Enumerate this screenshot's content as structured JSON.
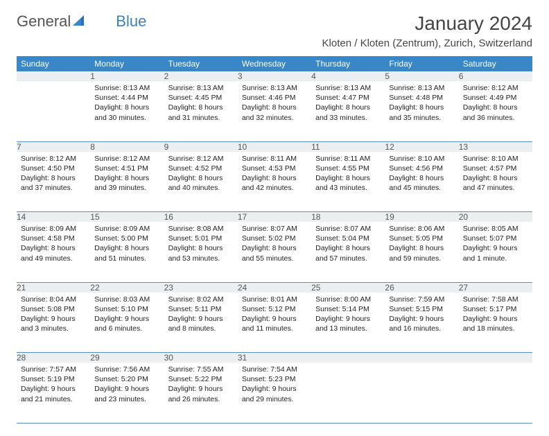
{
  "brand": {
    "part1": "General",
    "part2": "Blue"
  },
  "title": "January 2024",
  "location": "Kloten / Kloten (Zentrum), Zurich, Switzerland",
  "colors": {
    "header_bg": "#3a87c7",
    "header_text": "#ffffff",
    "daynum_bg": "#eceff1",
    "border": "#5a8fbf",
    "brand_gray": "#555555",
    "brand_blue": "#3a7fc4",
    "body_text": "#222222"
  },
  "weekdays": [
    "Sunday",
    "Monday",
    "Tuesday",
    "Wednesday",
    "Thursday",
    "Friday",
    "Saturday"
  ],
  "weeks": [
    [
      null,
      {
        "n": "1",
        "sr": "Sunrise: 8:13 AM",
        "ss": "Sunset: 4:44 PM",
        "d1": "Daylight: 8 hours",
        "d2": "and 30 minutes."
      },
      {
        "n": "2",
        "sr": "Sunrise: 8:13 AM",
        "ss": "Sunset: 4:45 PM",
        "d1": "Daylight: 8 hours",
        "d2": "and 31 minutes."
      },
      {
        "n": "3",
        "sr": "Sunrise: 8:13 AM",
        "ss": "Sunset: 4:46 PM",
        "d1": "Daylight: 8 hours",
        "d2": "and 32 minutes."
      },
      {
        "n": "4",
        "sr": "Sunrise: 8:13 AM",
        "ss": "Sunset: 4:47 PM",
        "d1": "Daylight: 8 hours",
        "d2": "and 33 minutes."
      },
      {
        "n": "5",
        "sr": "Sunrise: 8:13 AM",
        "ss": "Sunset: 4:48 PM",
        "d1": "Daylight: 8 hours",
        "d2": "and 35 minutes."
      },
      {
        "n": "6",
        "sr": "Sunrise: 8:12 AM",
        "ss": "Sunset: 4:49 PM",
        "d1": "Daylight: 8 hours",
        "d2": "and 36 minutes."
      }
    ],
    [
      {
        "n": "7",
        "sr": "Sunrise: 8:12 AM",
        "ss": "Sunset: 4:50 PM",
        "d1": "Daylight: 8 hours",
        "d2": "and 37 minutes."
      },
      {
        "n": "8",
        "sr": "Sunrise: 8:12 AM",
        "ss": "Sunset: 4:51 PM",
        "d1": "Daylight: 8 hours",
        "d2": "and 39 minutes."
      },
      {
        "n": "9",
        "sr": "Sunrise: 8:12 AM",
        "ss": "Sunset: 4:52 PM",
        "d1": "Daylight: 8 hours",
        "d2": "and 40 minutes."
      },
      {
        "n": "10",
        "sr": "Sunrise: 8:11 AM",
        "ss": "Sunset: 4:53 PM",
        "d1": "Daylight: 8 hours",
        "d2": "and 42 minutes."
      },
      {
        "n": "11",
        "sr": "Sunrise: 8:11 AM",
        "ss": "Sunset: 4:55 PM",
        "d1": "Daylight: 8 hours",
        "d2": "and 43 minutes."
      },
      {
        "n": "12",
        "sr": "Sunrise: 8:10 AM",
        "ss": "Sunset: 4:56 PM",
        "d1": "Daylight: 8 hours",
        "d2": "and 45 minutes."
      },
      {
        "n": "13",
        "sr": "Sunrise: 8:10 AM",
        "ss": "Sunset: 4:57 PM",
        "d1": "Daylight: 8 hours",
        "d2": "and 47 minutes."
      }
    ],
    [
      {
        "n": "14",
        "sr": "Sunrise: 8:09 AM",
        "ss": "Sunset: 4:58 PM",
        "d1": "Daylight: 8 hours",
        "d2": "and 49 minutes."
      },
      {
        "n": "15",
        "sr": "Sunrise: 8:09 AM",
        "ss": "Sunset: 5:00 PM",
        "d1": "Daylight: 8 hours",
        "d2": "and 51 minutes."
      },
      {
        "n": "16",
        "sr": "Sunrise: 8:08 AM",
        "ss": "Sunset: 5:01 PM",
        "d1": "Daylight: 8 hours",
        "d2": "and 53 minutes."
      },
      {
        "n": "17",
        "sr": "Sunrise: 8:07 AM",
        "ss": "Sunset: 5:02 PM",
        "d1": "Daylight: 8 hours",
        "d2": "and 55 minutes."
      },
      {
        "n": "18",
        "sr": "Sunrise: 8:07 AM",
        "ss": "Sunset: 5:04 PM",
        "d1": "Daylight: 8 hours",
        "d2": "and 57 minutes."
      },
      {
        "n": "19",
        "sr": "Sunrise: 8:06 AM",
        "ss": "Sunset: 5:05 PM",
        "d1": "Daylight: 8 hours",
        "d2": "and 59 minutes."
      },
      {
        "n": "20",
        "sr": "Sunrise: 8:05 AM",
        "ss": "Sunset: 5:07 PM",
        "d1": "Daylight: 9 hours",
        "d2": "and 1 minute."
      }
    ],
    [
      {
        "n": "21",
        "sr": "Sunrise: 8:04 AM",
        "ss": "Sunset: 5:08 PM",
        "d1": "Daylight: 9 hours",
        "d2": "and 3 minutes."
      },
      {
        "n": "22",
        "sr": "Sunrise: 8:03 AM",
        "ss": "Sunset: 5:10 PM",
        "d1": "Daylight: 9 hours",
        "d2": "and 6 minutes."
      },
      {
        "n": "23",
        "sr": "Sunrise: 8:02 AM",
        "ss": "Sunset: 5:11 PM",
        "d1": "Daylight: 9 hours",
        "d2": "and 8 minutes."
      },
      {
        "n": "24",
        "sr": "Sunrise: 8:01 AM",
        "ss": "Sunset: 5:12 PM",
        "d1": "Daylight: 9 hours",
        "d2": "and 11 minutes."
      },
      {
        "n": "25",
        "sr": "Sunrise: 8:00 AM",
        "ss": "Sunset: 5:14 PM",
        "d1": "Daylight: 9 hours",
        "d2": "and 13 minutes."
      },
      {
        "n": "26",
        "sr": "Sunrise: 7:59 AM",
        "ss": "Sunset: 5:15 PM",
        "d1": "Daylight: 9 hours",
        "d2": "and 16 minutes."
      },
      {
        "n": "27",
        "sr": "Sunrise: 7:58 AM",
        "ss": "Sunset: 5:17 PM",
        "d1": "Daylight: 9 hours",
        "d2": "and 18 minutes."
      }
    ],
    [
      {
        "n": "28",
        "sr": "Sunrise: 7:57 AM",
        "ss": "Sunset: 5:19 PM",
        "d1": "Daylight: 9 hours",
        "d2": "and 21 minutes."
      },
      {
        "n": "29",
        "sr": "Sunrise: 7:56 AM",
        "ss": "Sunset: 5:20 PM",
        "d1": "Daylight: 9 hours",
        "d2": "and 23 minutes."
      },
      {
        "n": "30",
        "sr": "Sunrise: 7:55 AM",
        "ss": "Sunset: 5:22 PM",
        "d1": "Daylight: 9 hours",
        "d2": "and 26 minutes."
      },
      {
        "n": "31",
        "sr": "Sunrise: 7:54 AM",
        "ss": "Sunset: 5:23 PM",
        "d1": "Daylight: 9 hours",
        "d2": "and 29 minutes."
      },
      null,
      null,
      null
    ]
  ]
}
